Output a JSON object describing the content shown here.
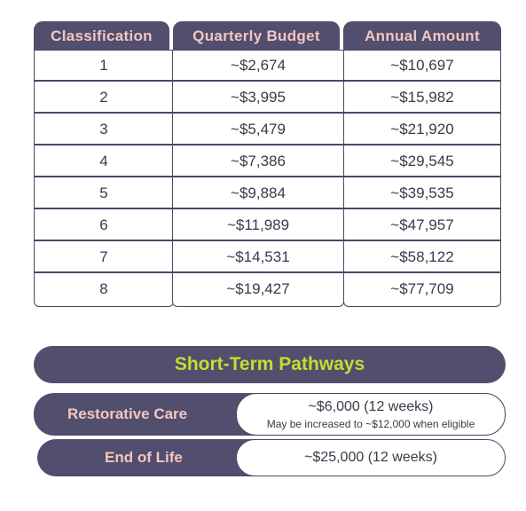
{
  "table": {
    "headers": [
      "Classification",
      "Quarterly Budget",
      "Annual Amount"
    ],
    "rows": [
      {
        "classification": "1",
        "quarterly": "~$2,674",
        "annual": "~$10,697"
      },
      {
        "classification": "2",
        "quarterly": "~$3,995",
        "annual": "~$15,982"
      },
      {
        "classification": "3",
        "quarterly": "~$5,479",
        "annual": "~$21,920"
      },
      {
        "classification": "4",
        "quarterly": "~$7,386",
        "annual": "~$29,545"
      },
      {
        "classification": "5",
        "quarterly": "~$9,884",
        "annual": "~$39,535"
      },
      {
        "classification": "6",
        "quarterly": "~$11,989",
        "annual": "~$47,957"
      },
      {
        "classification": "7",
        "quarterly": "~$14,531",
        "annual": "~$58,122"
      },
      {
        "classification": "8",
        "quarterly": "~$19,427",
        "annual": "~$77,709"
      }
    ]
  },
  "pathways": {
    "title": "Short-Term Pathways",
    "items": [
      {
        "label": "Restorative Care",
        "value": "~$6,000 (12 weeks)",
        "note": "May be increased to ~$12,000 when eligible"
      },
      {
        "label": "End of Life",
        "value": "~$25,000 (12 weeks)"
      }
    ]
  },
  "colors": {
    "header_bg": "#524e6e",
    "header_text": "#f3c6c0",
    "title_text": "#c7dd2e",
    "border": "#4b4866"
  }
}
